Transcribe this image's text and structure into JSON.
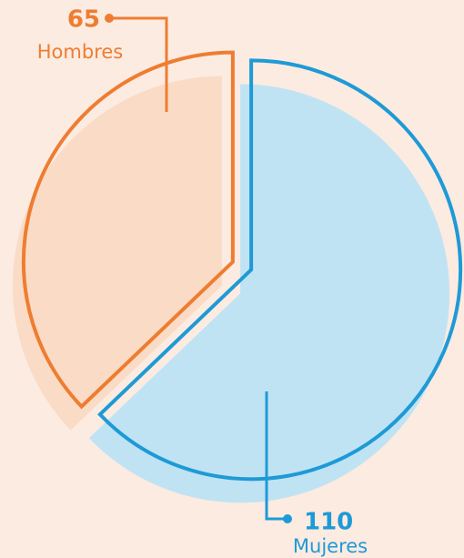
{
  "chart_data": {
    "type": "pie",
    "categories": [
      "Hombres",
      "Mujeres"
    ],
    "values": [
      65,
      110
    ],
    "colors": [
      "#ee7d31",
      "#1e9ad6"
    ]
  }
}
